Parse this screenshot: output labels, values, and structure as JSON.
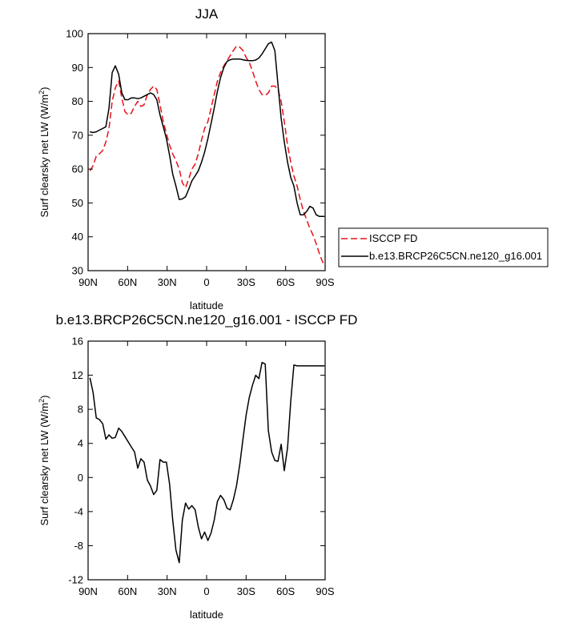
{
  "chart_data": [
    {
      "type": "line",
      "title": "JJA",
      "xlabel": "latitude",
      "ylabel": "Surf clearsky net LW (W/m",
      "ylabel_sup": "2",
      "ylabel_close": ")",
      "xlim": [
        -90,
        90
      ],
      "ylim": [
        30,
        100
      ],
      "xticks": [
        -90,
        -60,
        -30,
        0,
        30,
        60,
        90
      ],
      "xtick_labels": [
        "90N",
        "60N",
        "30N",
        "0",
        "30S",
        "60S",
        "90S"
      ],
      "yticks": [
        30,
        40,
        50,
        60,
        70,
        80,
        90,
        100
      ],
      "ytick_labels": [
        "30",
        "40",
        "50",
        "60",
        "70",
        "80",
        "90",
        "100"
      ],
      "legend_position": "right",
      "colors": {
        "ISCCP FD": "#e8101a",
        "b.e13.BRCP26C5CN.ne120_g16.001": "#000000"
      },
      "series": [
        {
          "name": "ISCCP FD",
          "style": "dashed",
          "x": [
            -88.6,
            -86.2,
            -83.8,
            -81.4,
            -78.9,
            -76.5,
            -74.1,
            -71.7,
            -69.3,
            -66.8,
            -64.4,
            -62.0,
            -59.6,
            -57.2,
            -54.7,
            -52.3,
            -49.9,
            -47.5,
            -45.0,
            -42.6,
            -40.2,
            -37.8,
            -35.4,
            -32.9,
            -30.5,
            -28.1,
            -25.7,
            -23.3,
            -20.8,
            -18.4,
            -16.0,
            -13.6,
            -11.2,
            -8.7,
            -6.3,
            -3.9,
            -1.5,
            1.0,
            3.4,
            5.8,
            8.2,
            10.6,
            13.1,
            15.5,
            17.9,
            20.3,
            22.7,
            25.2,
            27.6,
            30.0,
            32.4,
            34.8,
            37.3,
            39.7,
            42.1,
            44.5,
            46.9,
            49.4,
            51.8,
            54.2,
            56.6,
            59.0,
            61.5,
            63.9,
            66.3,
            68.7,
            71.1,
            73.6,
            76.0,
            78.4,
            80.8,
            83.2,
            85.7,
            88.1,
            89.5
          ],
          "values": [
            59.5,
            61.0,
            63.8,
            64.5,
            65.5,
            68.0,
            72.0,
            80.0,
            84.0,
            86.0,
            81.0,
            77.0,
            76.0,
            76.5,
            78.5,
            80.0,
            78.5,
            79.0,
            82.0,
            83.5,
            84.5,
            83.5,
            79.0,
            74.0,
            70.5,
            67.0,
            64.5,
            62.5,
            60.0,
            56.0,
            54.5,
            57.0,
            60.0,
            61.5,
            64.5,
            68.5,
            72.0,
            74.0,
            78.0,
            82.0,
            86.0,
            88.5,
            90.5,
            92.0,
            93.5,
            95.0,
            96.3,
            96.0,
            95.0,
            93.0,
            91.5,
            89.0,
            86.0,
            83.5,
            82.0,
            81.8,
            82.5,
            84.5,
            84.5,
            83.5,
            80.0,
            74.0,
            67.0,
            62.0,
            58.0,
            55.0,
            51.0,
            47.5,
            45.0,
            42.5,
            40.5,
            38.0,
            35.0,
            32.5,
            32.0
          ]
        },
        {
          "name": "b.e13.BRCP26C5CN.ne120_g16.001",
          "style": "solid",
          "x": [
            -88.6,
            -86.2,
            -83.8,
            -81.4,
            -78.9,
            -76.5,
            -74.1,
            -71.7,
            -69.3,
            -66.8,
            -64.4,
            -62.0,
            -59.6,
            -57.2,
            -54.7,
            -52.3,
            -49.9,
            -47.5,
            -45.0,
            -42.6,
            -40.2,
            -37.8,
            -35.4,
            -32.9,
            -30.5,
            -28.1,
            -25.7,
            -23.3,
            -20.8,
            -18.4,
            -16.0,
            -13.6,
            -11.2,
            -8.7,
            -6.3,
            -3.9,
            -1.5,
            1.0,
            3.4,
            5.8,
            8.2,
            10.6,
            13.1,
            15.5,
            17.9,
            20.3,
            22.7,
            25.2,
            27.6,
            30.0,
            32.4,
            34.8,
            37.3,
            39.7,
            42.1,
            44.5,
            46.9,
            49.4,
            51.8,
            54.2,
            56.6,
            59.0,
            61.5,
            63.9,
            66.3,
            68.7,
            71.1,
            73.6,
            76.0,
            78.4,
            80.8,
            83.2,
            85.7,
            88.1,
            89.5
          ],
          "values": [
            71.0,
            70.8,
            71.0,
            71.5,
            72.0,
            72.5,
            78.0,
            88.5,
            90.5,
            88.0,
            82.5,
            80.5,
            80.5,
            81.0,
            81.0,
            80.8,
            81.0,
            81.5,
            82.0,
            82.5,
            82.0,
            80.5,
            76.0,
            72.5,
            69.0,
            64.0,
            58.5,
            55.0,
            51.0,
            51.2,
            51.8,
            54.0,
            56.5,
            58.0,
            59.5,
            62.0,
            65.0,
            69.0,
            73.5,
            78.0,
            83.0,
            87.0,
            90.0,
            91.8,
            92.3,
            92.5,
            92.5,
            92.5,
            92.3,
            92.1,
            92.0,
            92.0,
            92.2,
            92.8,
            94.0,
            95.5,
            97.0,
            97.5,
            95.0,
            85.0,
            75.0,
            68.0,
            62.0,
            57.5,
            55.0,
            50.0,
            46.5,
            46.5,
            47.5,
            49.0,
            48.5,
            46.5,
            46.0,
            46.0,
            46.0
          ]
        }
      ]
    },
    {
      "type": "line",
      "title": "b.e13.BRCP26C5CN.ne120_g16.001 - ISCCP FD",
      "xlabel": "latitude",
      "ylabel": "Surf clearsky net LW (W/m",
      "ylabel_sup": "2",
      "ylabel_close": ")",
      "xlim": [
        -90,
        90
      ],
      "ylim": [
        -12,
        16
      ],
      "xticks": [
        -90,
        -60,
        -30,
        0,
        30,
        60,
        90
      ],
      "xtick_labels": [
        "90N",
        "60N",
        "30N",
        "0",
        "30S",
        "60S",
        "90S"
      ],
      "yticks": [
        -12,
        -8,
        -4,
        0,
        4,
        8,
        12,
        16
      ],
      "ytick_labels": [
        "-12",
        "-8",
        "-4",
        "0",
        "4",
        "8",
        "12",
        "16"
      ],
      "series": [
        {
          "style": "solid",
          "x": [
            -88.6,
            -86.2,
            -83.8,
            -81.4,
            -78.9,
            -76.5,
            -74.1,
            -71.7,
            -69.3,
            -66.8,
            -64.4,
            -62.0,
            -59.6,
            -57.2,
            -54.7,
            -52.3,
            -49.9,
            -47.5,
            -45.0,
            -42.6,
            -40.2,
            -37.8,
            -35.4,
            -32.9,
            -30.5,
            -28.1,
            -25.7,
            -23.3,
            -20.8,
            -18.4,
            -16.0,
            -13.6,
            -11.2,
            -8.7,
            -6.3,
            -3.9,
            -1.5,
            1.0,
            3.4,
            5.8,
            8.2,
            10.6,
            13.1,
            15.5,
            17.9,
            20.3,
            22.7,
            25.2,
            27.6,
            30.0,
            32.4,
            34.8,
            37.3,
            39.7,
            42.1,
            44.5,
            46.9,
            49.4,
            51.8,
            54.2,
            56.6,
            59.0,
            61.5,
            63.9,
            66.3,
            68.7,
            71.1,
            73.6,
            76.0,
            78.4,
            80.8,
            83.2,
            85.7,
            88.1,
            89.5
          ],
          "values": [
            11.7,
            10.0,
            7.0,
            6.8,
            6.3,
            4.5,
            5.0,
            4.6,
            4.7,
            5.8,
            5.4,
            4.8,
            4.2,
            3.6,
            3.0,
            1.1,
            2.2,
            1.8,
            -0.3,
            -1.0,
            -2.0,
            -1.5,
            2.1,
            1.8,
            1.8,
            -0.8,
            -5.0,
            -8.5,
            -10.0,
            -5.0,
            -3.0,
            -3.7,
            -3.3,
            -3.8,
            -5.8,
            -7.2,
            -6.4,
            -7.4,
            -6.5,
            -5.0,
            -2.8,
            -2.1,
            -2.6,
            -3.6,
            -3.8,
            -2.6,
            -1.0,
            1.5,
            4.5,
            7.3,
            9.4,
            10.8,
            12.0,
            11.6,
            13.5,
            13.3,
            5.5,
            3.0,
            2.0,
            1.9,
            3.9,
            0.8,
            3.5,
            9.0,
            13.2,
            13.1,
            13.1,
            13.1,
            13.1,
            13.1,
            13.1,
            13.1,
            13.1,
            13.1,
            13.1
          ]
        }
      ]
    }
  ]
}
